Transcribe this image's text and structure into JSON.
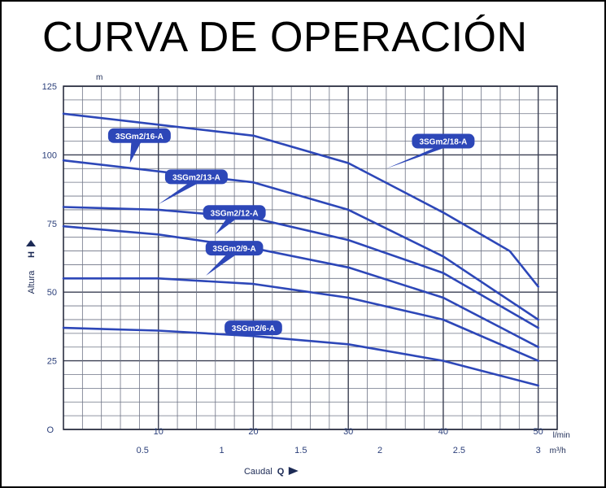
{
  "title": "CURVA DE OPERACIÓN",
  "chart_data": {
    "type": "line",
    "title": "CURVA DE OPERACIÓN",
    "ylabel": "Altura",
    "ylabel_symbol": "H",
    "y_unit": "m",
    "xlabel": "Caudal",
    "xlabel_symbol": "Q",
    "x_unit": "l/min",
    "x2_unit": "m³/h",
    "xlim": [
      0,
      52
    ],
    "ylim": [
      0,
      125
    ],
    "grid": true,
    "line_color": "#2d47b8",
    "origin_label": "O",
    "y_ticks": [
      25,
      50,
      75,
      100,
      125
    ],
    "x_ticks": [
      10,
      20,
      30,
      40,
      50
    ],
    "x2_ticks": [
      "0.5",
      "1",
      "1.5",
      "2",
      "2.5",
      "3"
    ],
    "series": [
      {
        "name": "3SGm2/18-A",
        "x": [
          0,
          20,
          30,
          40,
          47,
          50
        ],
        "y": [
          115,
          107,
          97,
          79,
          65,
          52
        ]
      },
      {
        "name": "3SGm2/16-A",
        "x": [
          0,
          20,
          30,
          40,
          50
        ],
        "y": [
          98,
          90,
          80,
          63,
          40
        ]
      },
      {
        "name": "3SGm2/13-A",
        "x": [
          0,
          10,
          20,
          30,
          40,
          50
        ],
        "y": [
          81,
          80,
          77,
          69,
          57,
          37
        ]
      },
      {
        "name": "3SGm2/12-A",
        "x": [
          0,
          10,
          20,
          30,
          40,
          50
        ],
        "y": [
          74,
          71,
          66,
          59,
          48,
          30
        ]
      },
      {
        "name": "3SGm2/9-A",
        "x": [
          0,
          10,
          20,
          30,
          40,
          50
        ],
        "y": [
          55,
          55,
          53,
          48,
          40,
          25
        ]
      },
      {
        "name": "3SGm2/6-A",
        "x": [
          0,
          10,
          20,
          30,
          40,
          50
        ],
        "y": [
          37,
          36,
          34,
          31,
          25,
          16
        ]
      }
    ]
  }
}
